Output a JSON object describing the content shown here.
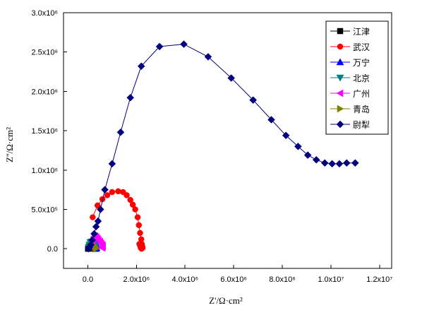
{
  "chart_data": {
    "type": "scatter",
    "xlabel": "Z'/Ω·cm²",
    "ylabel": "Z''/Ω·cm²",
    "xlim": [
      -1000000,
      12500000
    ],
    "ylim": [
      -250000,
      3000000
    ],
    "x_ticks": [
      {
        "value": 0,
        "label": "0.0"
      },
      {
        "value": 2000000,
        "label": "2.0x10⁶"
      },
      {
        "value": 4000000,
        "label": "4.0x10⁶"
      },
      {
        "value": 6000000,
        "label": "6.0x10⁶"
      },
      {
        "value": 8000000,
        "label": "8.0x10⁶"
      },
      {
        "value": 10000000,
        "label": "1.0x10⁷"
      },
      {
        "value": 12000000,
        "label": "1.2x10⁷"
      }
    ],
    "y_ticks": [
      {
        "value": 0,
        "label": "0.0"
      },
      {
        "value": 500000,
        "label": "5.0x10⁵"
      },
      {
        "value": 1000000,
        "label": "1.0x10⁶"
      },
      {
        "value": 1500000,
        "label": "1.5x10⁶"
      },
      {
        "value": 2000000,
        "label": "2.0x10⁶"
      },
      {
        "value": 2500000,
        "label": "2.5x10⁶"
      },
      {
        "value": 3000000,
        "label": "3.0x10⁶"
      }
    ],
    "legend_position": "top-right",
    "series": [
      {
        "name": "江津",
        "marker": "square",
        "color": "#000000",
        "connect": true,
        "x": [
          10000,
          30000,
          60000,
          100000,
          150000,
          200000,
          250000,
          280000,
          300000,
          290000,
          270000
        ],
        "y": [
          0,
          10000,
          30000,
          50000,
          70000,
          80000,
          70000,
          50000,
          30000,
          10000,
          0
        ]
      },
      {
        "name": "武汉",
        "marker": "circle",
        "color": "#ff0000",
        "connect": true,
        "x": [
          200000,
          400000,
          600000,
          800000,
          1000000,
          1250000,
          1450000,
          1600000,
          1750000,
          1850000,
          1950000,
          2050000,
          2100000,
          2150000,
          2200000,
          2220000,
          2230000,
          2210000,
          2180000,
          2200000
        ],
        "y": [
          400000,
          550000,
          630000,
          680000,
          720000,
          730000,
          720000,
          680000,
          620000,
          560000,
          500000,
          400000,
          300000,
          200000,
          120000,
          60000,
          20000,
          0,
          10000,
          40000
        ],
        "extra": {
          "x": [
            2240000,
            2250000,
            2160000,
            2120000
          ],
          "y": [
            30000,
            10000,
            30000,
            60000
          ]
        }
      },
      {
        "name": "万宁",
        "marker": "triangle-up",
        "color": "#0000ff",
        "connect": true,
        "x": [
          50000,
          100000,
          150000,
          200000,
          250000,
          300000,
          330000,
          350000,
          360000,
          340000
        ],
        "y": [
          40000,
          80000,
          110000,
          130000,
          120000,
          100000,
          70000,
          40000,
          10000,
          0
        ]
      },
      {
        "name": "北京",
        "marker": "triangle-down",
        "color": "#008080",
        "connect": true,
        "x": [
          30000,
          60000,
          100000,
          150000,
          200000,
          240000,
          270000,
          290000,
          300000
        ],
        "y": [
          20000,
          50000,
          80000,
          90000,
          80000,
          60000,
          40000,
          20000,
          0
        ]
      },
      {
        "name": "广州",
        "marker": "triangle-left",
        "color": "#ff00ff",
        "connect": true,
        "x": [
          200000,
          250000,
          300000,
          350000,
          400000,
          450000,
          500000,
          550000,
          600000,
          620000,
          600000,
          560000
        ],
        "y": [
          100000,
          150000,
          160000,
          150000,
          130000,
          110000,
          90000,
          70000,
          50000,
          30000,
          10000,
          20000
        ]
      },
      {
        "name": "青岛",
        "marker": "triangle-right",
        "color": "#808000",
        "connect": true,
        "x": [
          100000,
          150000,
          200000,
          250000,
          300000,
          330000
        ],
        "y": [
          20000,
          40000,
          50000,
          40000,
          20000,
          0
        ]
      },
      {
        "name": "尉犁",
        "marker": "diamond",
        "color": "#000080",
        "connect": true,
        "x": [
          30000,
          70000,
          120000,
          180000,
          260000,
          340000,
          420000,
          520000,
          700000,
          1000000,
          1350000,
          1750000,
          2200000,
          2950000,
          3950000,
          4950000,
          5900000,
          6800000,
          7550000,
          8150000,
          8650000,
          9050000,
          9400000,
          9750000,
          10050000,
          10350000,
          10650000,
          11000000
        ],
        "y": [
          0,
          20000,
          50000,
          110000,
          190000,
          280000,
          350000,
          500000,
          750000,
          1080000,
          1480000,
          1920000,
          2320000,
          2570000,
          2600000,
          2440000,
          2170000,
          1890000,
          1640000,
          1440000,
          1300000,
          1190000,
          1130000,
          1090000,
          1080000,
          1080000,
          1090000,
          1090000
        ]
      }
    ]
  }
}
